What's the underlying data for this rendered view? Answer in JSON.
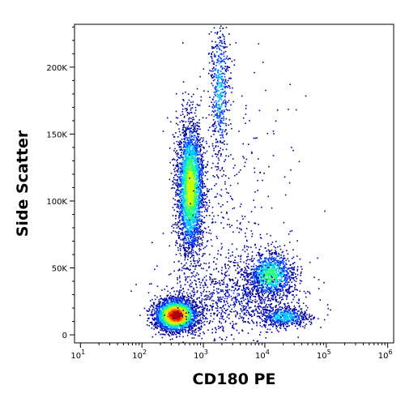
{
  "chart_data": {
    "type": "scatter",
    "subtype": "flow-cytometry-density-dot-plot",
    "xlabel": "CD180 PE",
    "ylabel": "Side Scatter",
    "x_scale": "log",
    "xlim": [
      8,
      1250000
    ],
    "ylim": [
      -6000,
      232000
    ],
    "x_ticks": [
      {
        "value": 10,
        "base": "10",
        "exp": "1"
      },
      {
        "value": 100,
        "base": "10",
        "exp": "2"
      },
      {
        "value": 1000,
        "base": "10",
        "exp": "3"
      },
      {
        "value": 10000,
        "base": "10",
        "exp": "4"
      },
      {
        "value": 100000,
        "base": "10",
        "exp": "5"
      },
      {
        "value": 1000000,
        "base": "10",
        "exp": "6"
      }
    ],
    "y_ticks": [
      {
        "value": 0,
        "label": "0"
      },
      {
        "value": 50000,
        "label": "50K"
      },
      {
        "value": 100000,
        "label": "100K"
      },
      {
        "value": 150000,
        "label": "150K"
      },
      {
        "value": 200000,
        "label": "200K"
      }
    ],
    "grid": false,
    "color_scale": [
      "#00009f",
      "#0040ff",
      "#00c8ff",
      "#20ff80",
      "#c8ff00",
      "#ffd000",
      "#ff4000",
      "#c00000"
    ],
    "populations": [
      {
        "center_x": 350,
        "center_y": 15000,
        "sd_log_x": 0.17,
        "sd_y": 6000,
        "count": 2600,
        "peak": 1.0
      },
      {
        "center_x": 600,
        "center_y": 110000,
        "sd_log_x": 0.11,
        "sd_y": 25000,
        "count": 3000,
        "peak": 0.6
      },
      {
        "center_x": 1800,
        "center_y": 185000,
        "sd_log_x": 0.08,
        "sd_y": 28000,
        "count": 550,
        "peak": 0.3
      },
      {
        "center_x": 12000,
        "center_y": 45000,
        "sd_log_x": 0.2,
        "sd_y": 9000,
        "count": 1100,
        "peak": 0.45
      },
      {
        "center_x": 20000,
        "center_y": 14000,
        "sd_log_x": 0.2,
        "sd_y": 4000,
        "count": 550,
        "peak": 0.35
      },
      {
        "center_x": 3000,
        "center_y": 28000,
        "sd_log_x": 0.55,
        "sd_y": 14000,
        "count": 900,
        "peak": 0.12
      },
      {
        "center_x": 2500,
        "center_y": 90000,
        "sd_log_x": 0.5,
        "sd_y": 45000,
        "count": 350,
        "peak": 0.05
      }
    ]
  }
}
